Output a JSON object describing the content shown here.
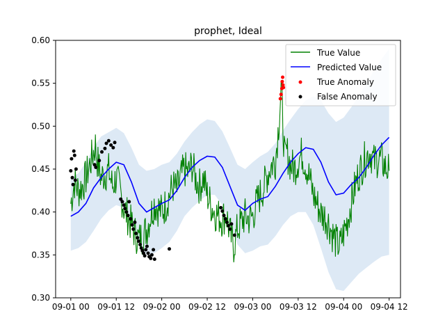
{
  "chart_data": {
    "type": "line",
    "title": "prophet, Ideal",
    "xlabel": "",
    "ylabel": "",
    "x_ticks": [
      "09-01 00",
      "09-01 12",
      "09-02 00",
      "09-02 12",
      "09-03 00",
      "09-03 12",
      "09-04 00",
      "09-04 12"
    ],
    "x_tick_hours": [
      0,
      12,
      24,
      36,
      48,
      60,
      72,
      84
    ],
    "xlim_hours": [
      -4,
      87
    ],
    "ylim": [
      0.3,
      0.6
    ],
    "y_ticks": [
      "0.30",
      "0.35",
      "0.40",
      "0.45",
      "0.50",
      "0.55",
      "0.60"
    ],
    "y_tick_values": [
      0.3,
      0.35,
      0.4,
      0.45,
      0.5,
      0.55,
      0.6
    ],
    "grid": false,
    "legend_position": "top-right",
    "legend": [
      "True Value",
      "Predicted Value",
      "True Anomaly",
      "False Anomaly"
    ],
    "colors": {
      "true_value": "#008000",
      "predicted_value": "#0000ff",
      "true_anomaly": "#ff0000",
      "false_anomaly": "#000000",
      "band": "#dde9f5"
    },
    "predicted": {
      "x_hours": [
        0,
        2,
        4,
        6,
        8,
        10,
        12,
        14,
        16,
        18,
        20,
        22,
        24,
        26,
        28,
        30,
        32,
        34,
        36,
        38,
        40,
        42,
        44,
        46,
        48,
        50,
        52,
        54,
        56,
        58,
        60,
        62,
        64,
        66,
        68,
        70,
        72,
        74,
        76,
        78,
        80,
        82,
        84
      ],
      "values": [
        0.395,
        0.4,
        0.41,
        0.428,
        0.44,
        0.45,
        0.458,
        0.455,
        0.435,
        0.41,
        0.4,
        0.405,
        0.41,
        0.414,
        0.425,
        0.44,
        0.452,
        0.46,
        0.465,
        0.464,
        0.452,
        0.43,
        0.408,
        0.402,
        0.41,
        0.415,
        0.418,
        0.43,
        0.445,
        0.458,
        0.468,
        0.475,
        0.473,
        0.458,
        0.435,
        0.42,
        0.422,
        0.432,
        0.44,
        0.452,
        0.466,
        0.478,
        0.487
      ]
    },
    "band": {
      "x_hours": [
        0,
        2,
        4,
        6,
        8,
        10,
        12,
        14,
        16,
        18,
        20,
        22,
        24,
        26,
        28,
        30,
        32,
        34,
        36,
        38,
        40,
        42,
        44,
        46,
        48,
        50,
        52,
        54,
        56,
        58,
        60,
        62,
        64,
        66,
        68,
        70,
        72,
        74,
        76,
        78,
        80,
        82,
        84
      ],
      "upper": [
        0.44,
        0.445,
        0.458,
        0.475,
        0.488,
        0.493,
        0.498,
        0.492,
        0.475,
        0.455,
        0.448,
        0.45,
        0.455,
        0.458,
        0.468,
        0.482,
        0.493,
        0.502,
        0.508,
        0.506,
        0.494,
        0.475,
        0.455,
        0.45,
        0.458,
        0.465,
        0.47,
        0.48,
        0.495,
        0.508,
        0.52,
        0.53,
        0.535,
        0.53,
        0.515,
        0.505,
        0.51,
        0.522,
        0.535,
        0.55,
        0.565,
        0.578,
        0.59
      ],
      "lower": [
        0.355,
        0.358,
        0.365,
        0.378,
        0.392,
        0.402,
        0.408,
        0.405,
        0.388,
        0.362,
        0.35,
        0.352,
        0.358,
        0.365,
        0.378,
        0.395,
        0.405,
        0.413,
        0.42,
        0.42,
        0.408,
        0.388,
        0.362,
        0.352,
        0.355,
        0.36,
        0.362,
        0.372,
        0.385,
        0.395,
        0.4,
        0.4,
        0.385,
        0.358,
        0.33,
        0.31,
        0.308,
        0.318,
        0.328,
        0.335,
        0.342,
        0.348,
        0.35
      ]
    },
    "true_value": {
      "x_hours": [
        0,
        1,
        2,
        3,
        4,
        5,
        6,
        6.5,
        7,
        8,
        9,
        10,
        11,
        12,
        13,
        14,
        15,
        16,
        17,
        18,
        19,
        20,
        21,
        22,
        23,
        24,
        25,
        26,
        27,
        28,
        29,
        30,
        31,
        32,
        33,
        34,
        35,
        36,
        37,
        38,
        39,
        40,
        41,
        42,
        43,
        44,
        45,
        46,
        47,
        48,
        49,
        50,
        51,
        52,
        53,
        54,
        55,
        55.5,
        56,
        56.5,
        57,
        58,
        59,
        60,
        61,
        62,
        63,
        64,
        65,
        66,
        67,
        68,
        69,
        70,
        71,
        72,
        73,
        74,
        75,
        76,
        77,
        78,
        79,
        80,
        81,
        82,
        83,
        84
      ],
      "values": [
        0.41,
        0.435,
        0.425,
        0.43,
        0.44,
        0.455,
        0.47,
        0.478,
        0.46,
        0.44,
        0.445,
        0.448,
        0.43,
        0.44,
        0.425,
        0.405,
        0.395,
        0.385,
        0.375,
        0.368,
        0.372,
        0.38,
        0.395,
        0.41,
        0.405,
        0.4,
        0.408,
        0.42,
        0.43,
        0.425,
        0.44,
        0.45,
        0.445,
        0.455,
        0.438,
        0.43,
        0.44,
        0.42,
        0.408,
        0.4,
        0.395,
        0.392,
        0.398,
        0.375,
        0.36,
        0.38,
        0.388,
        0.395,
        0.392,
        0.395,
        0.41,
        0.42,
        0.43,
        0.445,
        0.455,
        0.46,
        0.51,
        0.545,
        0.5,
        0.46,
        0.47,
        0.455,
        0.45,
        0.46,
        0.468,
        0.455,
        0.44,
        0.42,
        0.41,
        0.398,
        0.395,
        0.388,
        0.375,
        0.365,
        0.36,
        0.375,
        0.39,
        0.41,
        0.43,
        0.445,
        0.455,
        0.465,
        0.47,
        0.458,
        0.462,
        0.46,
        0.452,
        0.448
      ]
    },
    "true_anomalies": [
      {
        "x": 55.3,
        "y": 0.532
      },
      {
        "x": 55.5,
        "y": 0.537
      },
      {
        "x": 55.7,
        "y": 0.544
      },
      {
        "x": 55.8,
        "y": 0.552
      },
      {
        "x": 55.9,
        "y": 0.557
      },
      {
        "x": 56.0,
        "y": 0.548
      },
      {
        "x": 56.1,
        "y": 0.545
      }
    ],
    "false_anomalies": [
      {
        "x": 0.0,
        "y": 0.448
      },
      {
        "x": 0.2,
        "y": 0.462
      },
      {
        "x": 0.4,
        "y": 0.44
      },
      {
        "x": 0.6,
        "y": 0.432
      },
      {
        "x": 0.8,
        "y": 0.471
      },
      {
        "x": 1.0,
        "y": 0.466
      },
      {
        "x": 1.2,
        "y": 0.437
      },
      {
        "x": 1.4,
        "y": 0.45
      },
      {
        "x": 6.3,
        "y": 0.455
      },
      {
        "x": 6.6,
        "y": 0.452
      },
      {
        "x": 7.5,
        "y": 0.46
      },
      {
        "x": 8.2,
        "y": 0.47
      },
      {
        "x": 9.0,
        "y": 0.474
      },
      {
        "x": 9.4,
        "y": 0.48
      },
      {
        "x": 10.0,
        "y": 0.483
      },
      {
        "x": 10.6,
        "y": 0.478
      },
      {
        "x": 11.2,
        "y": 0.475
      },
      {
        "x": 11.6,
        "y": 0.481
      },
      {
        "x": 13.2,
        "y": 0.415
      },
      {
        "x": 13.6,
        "y": 0.412
      },
      {
        "x": 14.0,
        "y": 0.408
      },
      {
        "x": 14.3,
        "y": 0.404
      },
      {
        "x": 14.7,
        "y": 0.4
      },
      {
        "x": 15.1,
        "y": 0.396
      },
      {
        "x": 15.4,
        "y": 0.412
      },
      {
        "x": 15.8,
        "y": 0.392
      },
      {
        "x": 16.2,
        "y": 0.385
      },
      {
        "x": 16.5,
        "y": 0.38
      },
      {
        "x": 16.9,
        "y": 0.388
      },
      {
        "x": 17.2,
        "y": 0.375
      },
      {
        "x": 17.6,
        "y": 0.37
      },
      {
        "x": 17.9,
        "y": 0.366
      },
      {
        "x": 18.3,
        "y": 0.362
      },
      {
        "x": 18.6,
        "y": 0.358
      },
      {
        "x": 18.9,
        "y": 0.355
      },
      {
        "x": 19.2,
        "y": 0.352
      },
      {
        "x": 19.5,
        "y": 0.349
      },
      {
        "x": 19.8,
        "y": 0.356
      },
      {
        "x": 20.1,
        "y": 0.36
      },
      {
        "x": 20.4,
        "y": 0.352
      },
      {
        "x": 20.7,
        "y": 0.348
      },
      {
        "x": 21.1,
        "y": 0.346
      },
      {
        "x": 21.4,
        "y": 0.35
      },
      {
        "x": 21.8,
        "y": 0.356
      },
      {
        "x": 22.1,
        "y": 0.345
      },
      {
        "x": 26.0,
        "y": 0.357
      },
      {
        "x": 39.6,
        "y": 0.405
      },
      {
        "x": 40.0,
        "y": 0.401
      },
      {
        "x": 40.4,
        "y": 0.396
      },
      {
        "x": 40.8,
        "y": 0.392
      },
      {
        "x": 41.2,
        "y": 0.388
      },
      {
        "x": 41.6,
        "y": 0.384
      },
      {
        "x": 42.0,
        "y": 0.38
      },
      {
        "x": 42.4,
        "y": 0.386
      },
      {
        "x": 43.2,
        "y": 0.373
      }
    ]
  }
}
